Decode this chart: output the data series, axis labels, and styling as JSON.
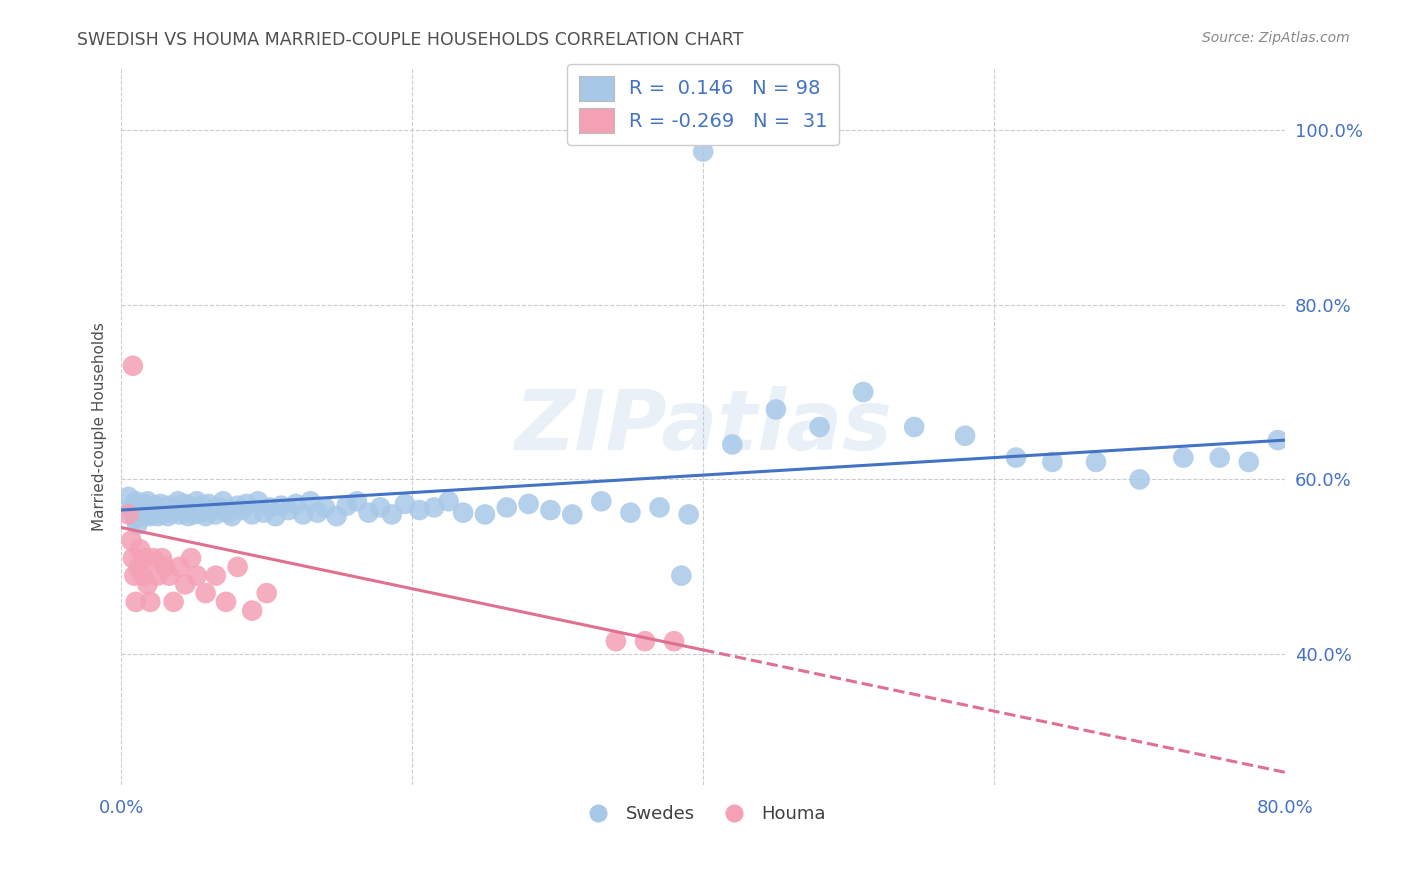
{
  "title": "SWEDISH VS HOUMA MARRIED-COUPLE HOUSEHOLDS CORRELATION CHART",
  "source": "Source: ZipAtlas.com",
  "ylabel": "Married-couple Households",
  "xlim": [
    0.0,
    0.8
  ],
  "ylim": [
    0.25,
    1.07
  ],
  "yticks": [
    0.4,
    0.6,
    0.8,
    1.0
  ],
  "ytick_labels": [
    "40.0%",
    "60.0%",
    "80.0%",
    "100.0%"
  ],
  "xticks": [
    0.0,
    0.2,
    0.4,
    0.6,
    0.8
  ],
  "xtick_labels": [
    "0.0%",
    "",
    "",
    "",
    "80.0%"
  ],
  "swedish_R": 0.146,
  "swedish_N": 98,
  "houma_R": -0.269,
  "houma_N": 31,
  "blue_color": "#a8c8e8",
  "pink_color": "#f4a0b5",
  "blue_line_color": "#4472c4",
  "pink_line_color": "#e07090",
  "watermark": "ZIPatlas",
  "background_color": "#ffffff",
  "grid_color": "#cccccc",
  "title_color": "#505050",
  "axis_color": "#4472c4",
  "swedish_x": [
    0.005,
    0.007,
    0.008,
    0.009,
    0.01,
    0.01,
    0.011,
    0.012,
    0.012,
    0.013,
    0.014,
    0.015,
    0.016,
    0.017,
    0.018,
    0.018,
    0.02,
    0.021,
    0.022,
    0.023,
    0.025,
    0.026,
    0.027,
    0.028,
    0.03,
    0.032,
    0.033,
    0.035,
    0.037,
    0.039,
    0.04,
    0.042,
    0.044,
    0.046,
    0.048,
    0.05,
    0.052,
    0.054,
    0.056,
    0.058,
    0.06,
    0.063,
    0.065,
    0.068,
    0.07,
    0.073,
    0.076,
    0.08,
    0.083,
    0.086,
    0.09,
    0.094,
    0.098,
    0.102,
    0.106,
    0.11,
    0.115,
    0.12,
    0.125,
    0.13,
    0.135,
    0.14,
    0.148,
    0.155,
    0.162,
    0.17,
    0.178,
    0.186,
    0.195,
    0.205,
    0.215,
    0.225,
    0.235,
    0.25,
    0.265,
    0.28,
    0.295,
    0.31,
    0.33,
    0.35,
    0.37,
    0.39,
    0.42,
    0.45,
    0.48,
    0.51,
    0.545,
    0.58,
    0.615,
    0.64,
    0.67,
    0.7,
    0.73,
    0.755,
    0.775,
    0.795,
    0.385,
    0.4
  ],
  "swedish_y": [
    0.58,
    0.565,
    0.57,
    0.56,
    0.555,
    0.575,
    0.548,
    0.562,
    0.57,
    0.558,
    0.565,
    0.572,
    0.558,
    0.568,
    0.56,
    0.575,
    0.558,
    0.565,
    0.562,
    0.57,
    0.558,
    0.568,
    0.572,
    0.56,
    0.565,
    0.558,
    0.57,
    0.562,
    0.568,
    0.575,
    0.56,
    0.565,
    0.572,
    0.558,
    0.568,
    0.56,
    0.575,
    0.562,
    0.57,
    0.558,
    0.572,
    0.565,
    0.56,
    0.568,
    0.575,
    0.562,
    0.558,
    0.57,
    0.565,
    0.572,
    0.56,
    0.575,
    0.562,
    0.568,
    0.558,
    0.57,
    0.565,
    0.572,
    0.56,
    0.575,
    0.562,
    0.568,
    0.558,
    0.57,
    0.575,
    0.562,
    0.568,
    0.56,
    0.572,
    0.565,
    0.568,
    0.575,
    0.562,
    0.56,
    0.568,
    0.572,
    0.565,
    0.56,
    0.575,
    0.562,
    0.568,
    0.56,
    0.64,
    0.68,
    0.66,
    0.7,
    0.66,
    0.65,
    0.625,
    0.62,
    0.62,
    0.6,
    0.625,
    0.625,
    0.62,
    0.645,
    0.49,
    0.975
  ],
  "houma_x": [
    0.005,
    0.007,
    0.008,
    0.009,
    0.01,
    0.012,
    0.013,
    0.015,
    0.016,
    0.018,
    0.02,
    0.022,
    0.025,
    0.028,
    0.03,
    0.033,
    0.036,
    0.04,
    0.044,
    0.048,
    0.052,
    0.058,
    0.065,
    0.072,
    0.08,
    0.09,
    0.1,
    0.34,
    0.36,
    0.38,
    0.008
  ],
  "houma_y": [
    0.56,
    0.53,
    0.51,
    0.49,
    0.46,
    0.5,
    0.52,
    0.49,
    0.51,
    0.48,
    0.46,
    0.51,
    0.49,
    0.51,
    0.5,
    0.49,
    0.46,
    0.5,
    0.48,
    0.51,
    0.49,
    0.47,
    0.49,
    0.46,
    0.5,
    0.45,
    0.47,
    0.415,
    0.415,
    0.415,
    0.73
  ]
}
